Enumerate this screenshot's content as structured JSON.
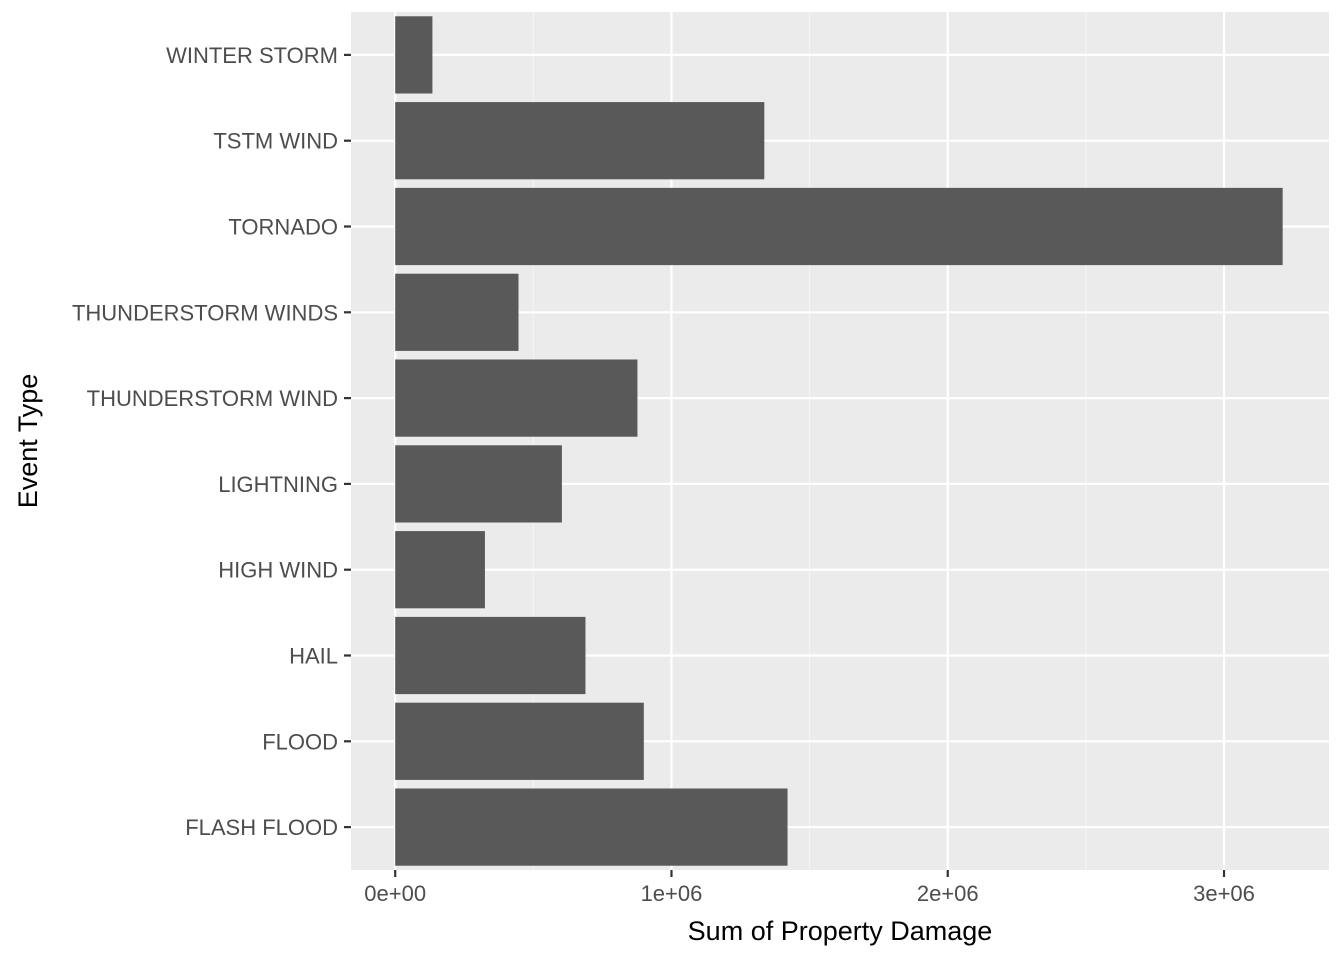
{
  "chart_data": {
    "type": "bar",
    "orientation": "horizontal",
    "title": "",
    "xlabel": "Sum of Property Damage",
    "ylabel": "Event Type",
    "xlim": [
      -160000,
      3380000
    ],
    "xticks": [
      0,
      1000000,
      2000000,
      3000000
    ],
    "xtick_labels": [
      "0e+00",
      "1e+06",
      "2e+06",
      "3e+06"
    ],
    "categories": [
      "WINTER STORM",
      "TSTM WIND",
      "TORNADO",
      "THUNDERSTORM WINDS",
      "THUNDERSTORM WIND",
      "LIGHTNING",
      "HIGH WIND",
      "HAIL",
      "FLOOD",
      "FLASH FLOOD"
    ],
    "values": [
      134700,
      1335996,
      3212258,
      446293,
      876844,
      603352,
      324732,
      688693,
      899938,
      1420125
    ],
    "grid": true,
    "colors": {
      "bar": "#595959",
      "panel": "#ebebeb",
      "grid_major": "#ffffff",
      "grid_minor": "#f5f5f5"
    }
  }
}
